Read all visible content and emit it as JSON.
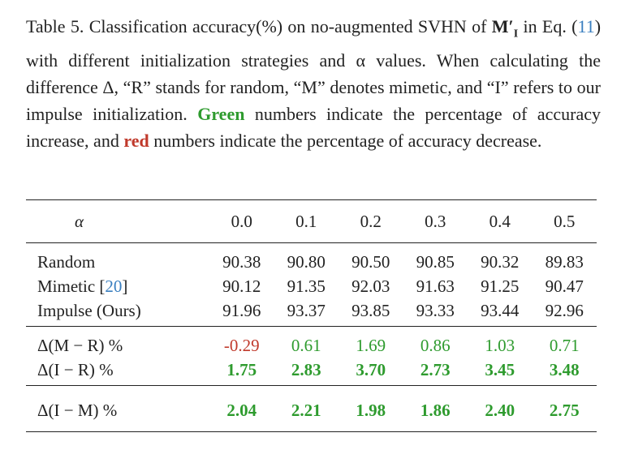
{
  "caption": {
    "prefix": "Table 5.",
    "part1": "Classification accuracy(%) on no-augmented SVHN of",
    "math": "M′",
    "math_sub": "I",
    "part2": "in Eq. (",
    "eq_ref": "11",
    "part3": ") with different initialization strategies and α values. When calculating the difference Δ, “R” stands for random, “M” denotes mimetic, and “I” refers to our impulse initialization.",
    "green": "Green",
    "part4": "numbers indicate the percentage of accuracy increase, and",
    "red": "red",
    "part5": "numbers indicate the percentage of accuracy decrease."
  },
  "table": {
    "header": [
      "α",
      "0.0",
      "0.1",
      "0.2",
      "0.3",
      "0.4",
      "0.5"
    ],
    "groups": [
      {
        "rows": [
          {
            "label": "Random",
            "values": [
              "90.38",
              "90.80",
              "90.50",
              "90.85",
              "90.32",
              "89.83"
            ]
          },
          {
            "label": "Mimetic [",
            "cite": "20",
            "label_end": "]",
            "values": [
              "90.12",
              "91.35",
              "92.03",
              "91.63",
              "91.25",
              "90.47"
            ]
          },
          {
            "label": "Impulse (Ours)",
            "values": [
              "91.96",
              "93.37",
              "93.85",
              "93.33",
              "93.44",
              "92.96"
            ]
          }
        ]
      },
      {
        "rows": [
          {
            "label": "Δ(M − R) %",
            "values": [
              "-0.29",
              "0.61",
              "1.69",
              "0.86",
              "1.03",
              "0.71"
            ],
            "colors": [
              "#c0392b",
              "#2e9b2e",
              "#2e9b2e",
              "#2e9b2e",
              "#2e9b2e",
              "#2e9b2e"
            ],
            "bold": false
          },
          {
            "label": "Δ(I − R) %",
            "values": [
              "1.75",
              "2.83",
              "3.70",
              "2.73",
              "3.45",
              "3.48"
            ],
            "colors": [
              "#2e9b2e",
              "#2e9b2e",
              "#2e9b2e",
              "#2e9b2e",
              "#2e9b2e",
              "#2e9b2e"
            ],
            "bold": true
          }
        ]
      },
      {
        "rows": [
          {
            "label": "Δ(I − M) %",
            "values": [
              "2.04",
              "2.21",
              "1.98",
              "1.86",
              "2.40",
              "2.75"
            ],
            "colors": [
              "#2e9b2e",
              "#2e9b2e",
              "#2e9b2e",
              "#2e9b2e",
              "#2e9b2e",
              "#2e9b2e"
            ],
            "bold": true
          }
        ]
      }
    ]
  }
}
